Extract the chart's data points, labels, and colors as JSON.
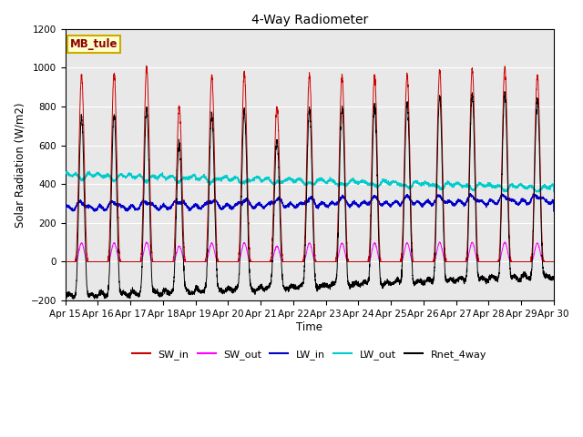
{
  "title": "4-Way Radiometer",
  "xlabel": "Time",
  "ylabel": "Solar Radiation (W/m2)",
  "ylim": [
    -200,
    1200
  ],
  "yticks": [
    -200,
    0,
    200,
    400,
    600,
    800,
    1000,
    1200
  ],
  "x_labels": [
    "Apr 15",
    "Apr 16",
    "Apr 17",
    "Apr 18",
    "Apr 19",
    "Apr 20",
    "Apr 21",
    "Apr 22",
    "Apr 23",
    "Apr 24",
    "Apr 25",
    "Apr 26",
    "Apr 27",
    "Apr 28",
    "Apr 29",
    "Apr 30"
  ],
  "station_label": "MB_tule",
  "fig_bg_color": "#ffffff",
  "plot_bg_color": "#e8e8e8",
  "grid_color": "#c8c8c8",
  "colors": {
    "SW_in": "#cc0000",
    "SW_out": "#ff00ff",
    "LW_in": "#0000cc",
    "LW_out": "#00cccc",
    "Rnet_4way": "#000000"
  },
  "n_days": 15,
  "points_per_day": 288,
  "peak_heights": [
    960,
    970,
    1000,
    800,
    960,
    970,
    800,
    960,
    960,
    960,
    960,
    990,
    990,
    1000,
    960
  ]
}
